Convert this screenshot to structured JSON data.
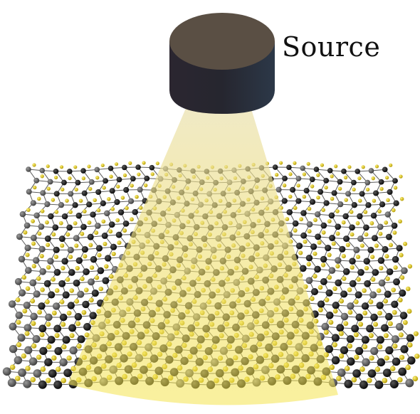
{
  "source_label": "Source",
  "colors": {
    "source_top": "#5a4f44",
    "source_side_left": "#2c2730",
    "source_side_right": "#2a3440",
    "beam_top": "#e8dda0",
    "beam_bottom": "#f3e24a",
    "atom_metal": "#111111",
    "atom_metal_grey": "#6a6a6a",
    "atom_chalcogen": "#e0c81a",
    "bond": "#555555"
  },
  "icons": {
    "source": "cylinder-source-icon",
    "beam": "light-cone-icon",
    "lattice": "atomic-lattice-icon"
  }
}
